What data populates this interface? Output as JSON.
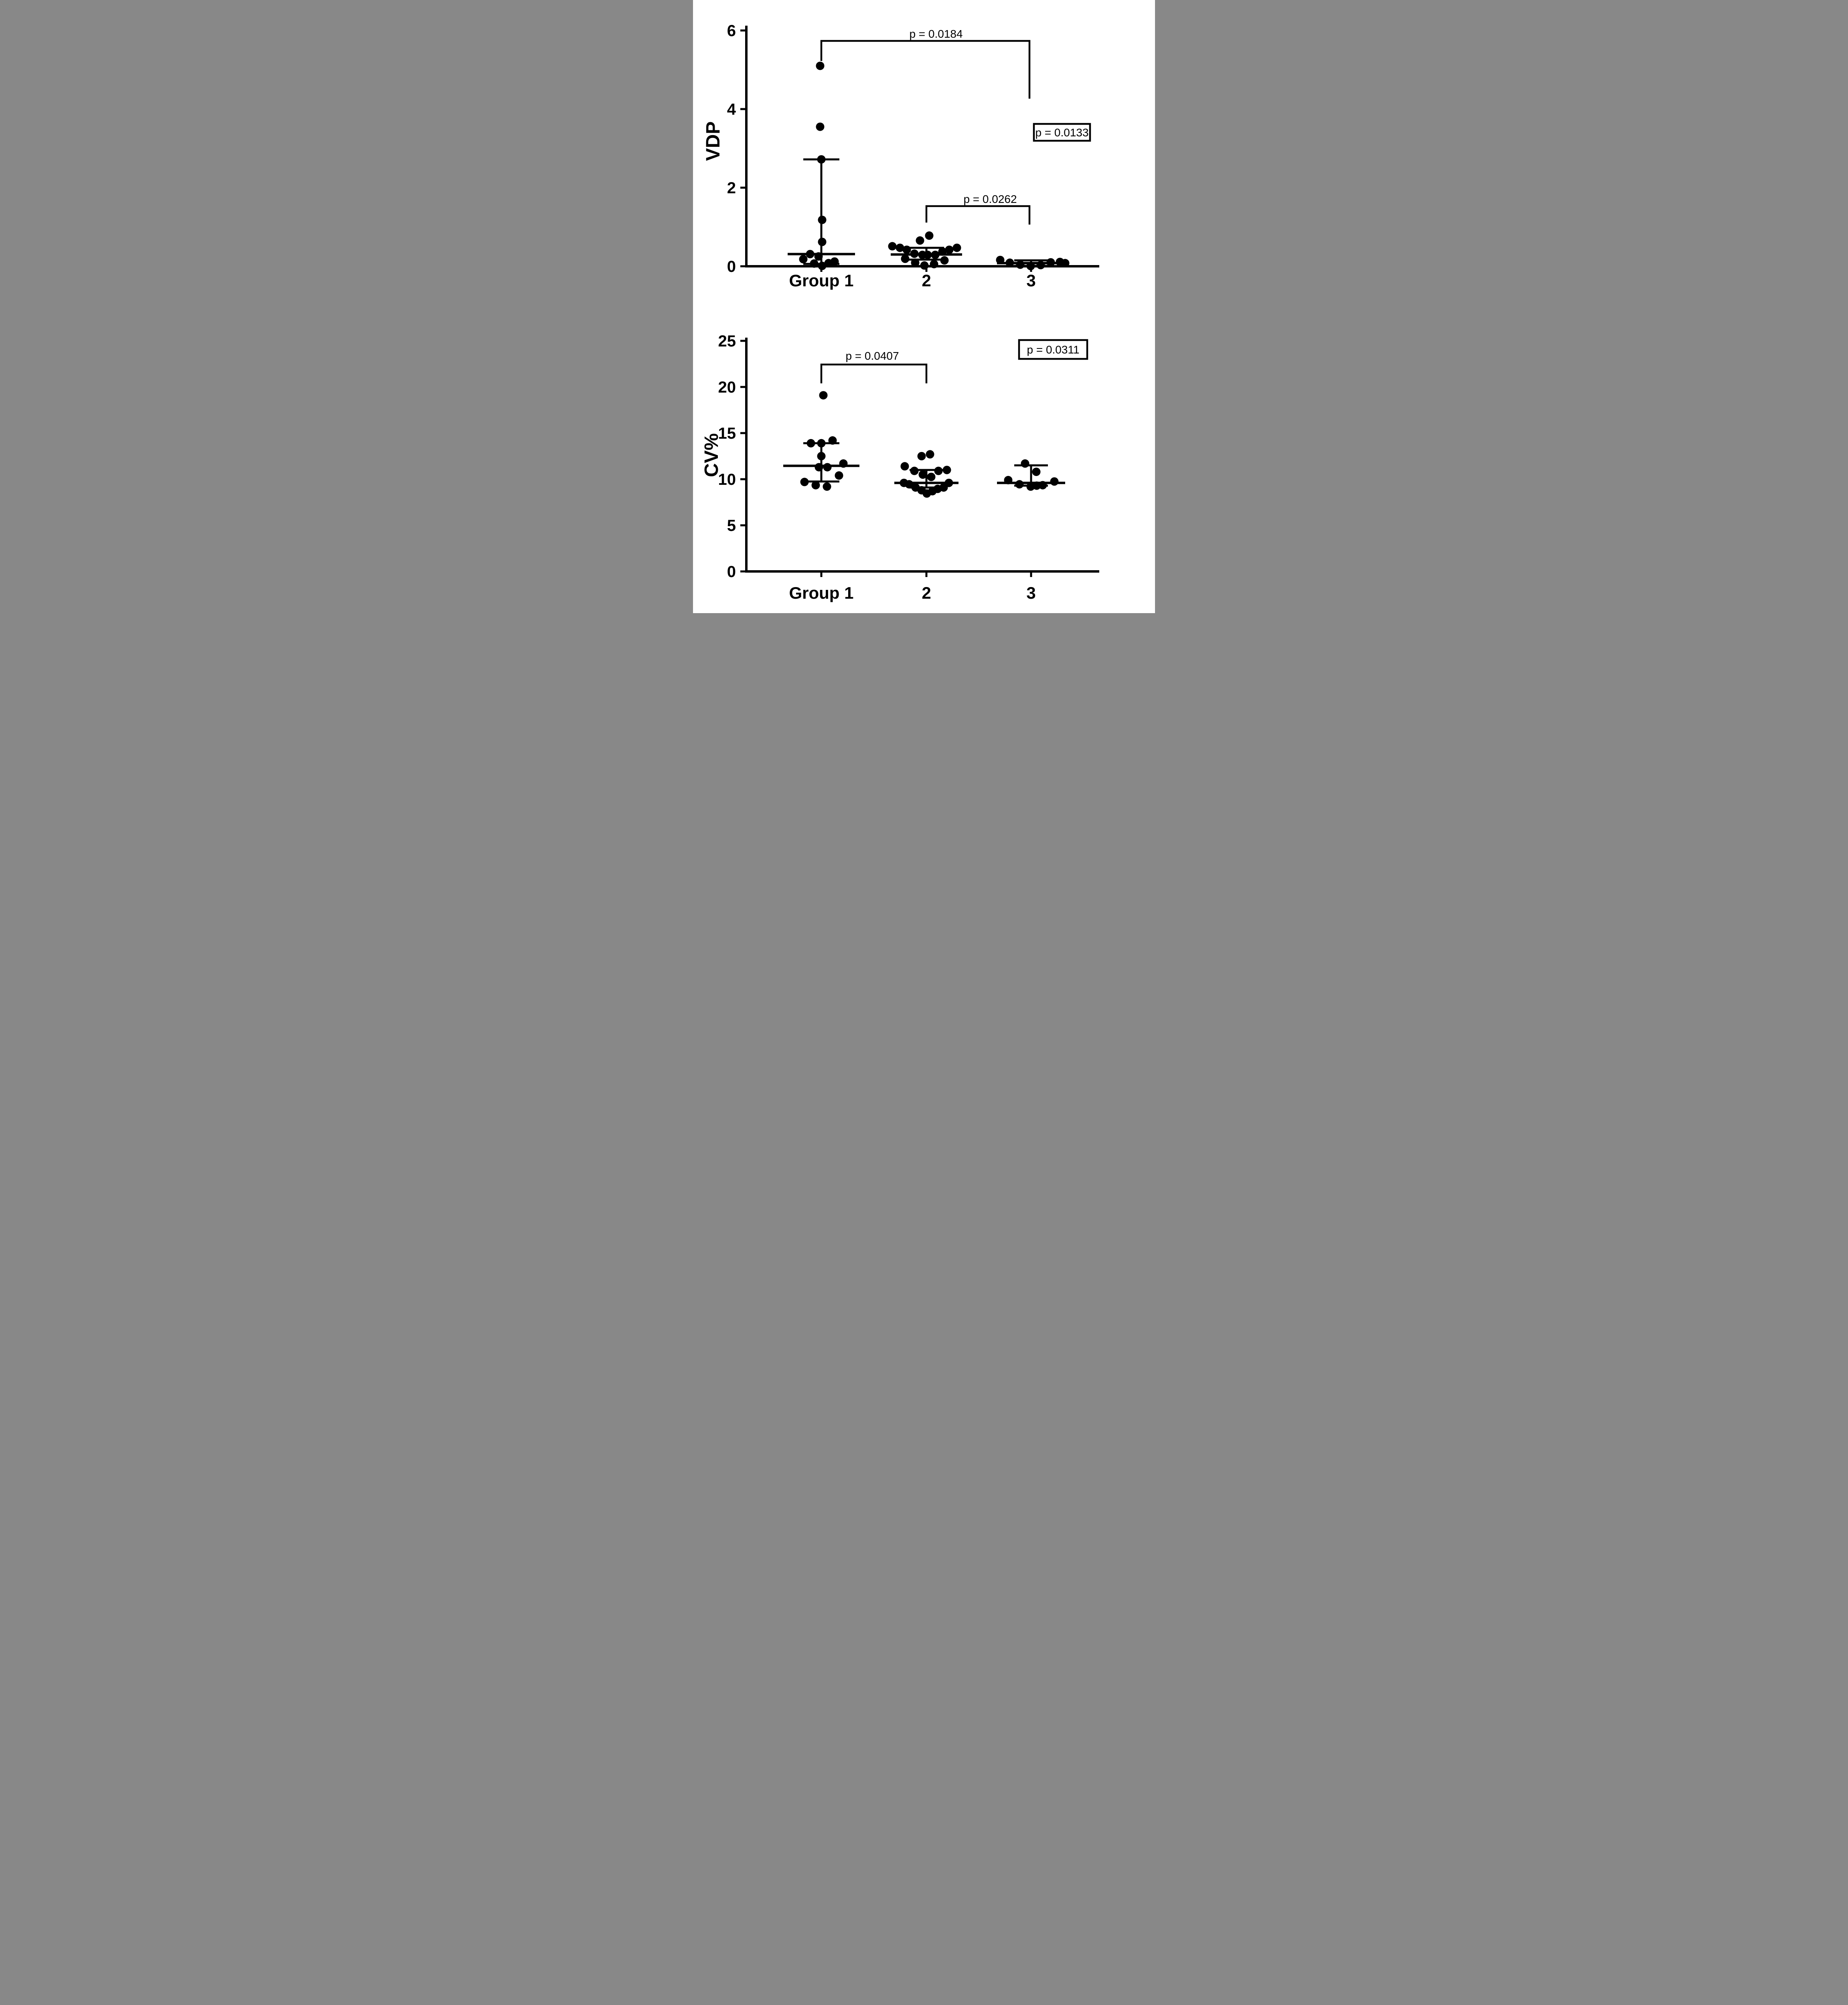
{
  "figure": {
    "background_color": "#ffffff",
    "ink_color": "#000000"
  },
  "chart_data": [
    {
      "type": "scatter",
      "panel": "top",
      "ylabel": "VDP",
      "ylim": [
        0,
        6
      ],
      "yticks": [
        0,
        2,
        4,
        6
      ],
      "grid": "off",
      "xlabels": [
        "Group  1",
        "2",
        "3"
      ],
      "groups": [
        {
          "label": "Group  1",
          "median": 0.31,
          "whisker_upper": 2.72,
          "whisker_lower": 0.06,
          "mw": 84,
          "cw": 45,
          "points": [
            {
              "v": 5.1,
              "dx": -3
            },
            {
              "v": 3.55,
              "dx": -3
            },
            {
              "v": 2.72,
              "dx": 0
            },
            {
              "v": 1.18,
              "dx": 2
            },
            {
              "v": 0.62,
              "dx": 2
            },
            {
              "v": 0.18,
              "dx": -45
            },
            {
              "v": 0.31,
              "dx": -28
            },
            {
              "v": 0.25,
              "dx": -7
            },
            {
              "v": 0.07,
              "dx": -18
            },
            {
              "v": 0.01,
              "dx": 2
            },
            {
              "v": 0.08,
              "dx": 18
            },
            {
              "v": 0.12,
              "dx": 33
            }
          ]
        },
        {
          "label": "2",
          "median": 0.3,
          "whisker_upper": 0.47,
          "whisker_lower": 0.17,
          "mw": 89,
          "cw": 44,
          "points": [
            {
              "v": 0.78,
              "dx": 7
            },
            {
              "v": 0.655,
              "dx": -16
            },
            {
              "v": 0.51,
              "dx": -85
            },
            {
              "v": 0.47,
              "dx": -66
            },
            {
              "v": 0.42,
              "dx": -49
            },
            {
              "v": 0.47,
              "dx": 76
            },
            {
              "v": 0.42,
              "dx": 57
            },
            {
              "v": 0.375,
              "dx": 40
            },
            {
              "v": 0.32,
              "dx": -30
            },
            {
              "v": 0.29,
              "dx": -10
            },
            {
              "v": 0.29,
              "dx": 3
            },
            {
              "v": 0.29,
              "dx": 22
            },
            {
              "v": 0.19,
              "dx": -53
            },
            {
              "v": 0.15,
              "dx": 45
            },
            {
              "v": 0.09,
              "dx": -28
            },
            {
              "v": 0.02,
              "dx": -5
            },
            {
              "v": 0.055,
              "dx": 19
            }
          ]
        },
        {
          "label": "3",
          "median": 0.08,
          "whisker_upper": 0.15,
          "whisker_lower": 0.01,
          "mw": 85,
          "cw": 42,
          "points": [
            {
              "v": 0.16,
              "dx": -77
            },
            {
              "v": 0.09,
              "dx": -53
            },
            {
              "v": 0.04,
              "dx": -27
            },
            {
              "v": 0.005,
              "dx": -1
            },
            {
              "v": 0.03,
              "dx": 24
            },
            {
              "v": 0.1,
              "dx": 49
            },
            {
              "v": 0.11,
              "dx": 72
            },
            {
              "v": 0.08,
              "dx": 85
            }
          ]
        }
      ],
      "brackets": [
        {
          "text": "p = 0.0184",
          "x1": 320,
          "x2": 839,
          "y": 102,
          "d1": 50,
          "d2": 144,
          "tx": 606,
          "ty": 94
        },
        {
          "text": "p = 0.0262",
          "x1": 582,
          "x2": 839,
          "y": 514,
          "d1": 41,
          "d2": 46,
          "tx": 741,
          "ty": 506
        }
      ],
      "pbox": {
        "text": "p = 0.0133",
        "x": 850,
        "y": 309,
        "w": 140,
        "h": 42
      }
    },
    {
      "type": "scatter",
      "panel": "bottom",
      "ylabel": "CV%",
      "ylim": [
        0,
        25
      ],
      "yticks": [
        0,
        5,
        10,
        15,
        20,
        25
      ],
      "grid": "off",
      "xlabels": [
        "Group 1",
        "2",
        "3"
      ],
      "groups": [
        {
          "label": "Group 1",
          "median": 11.45,
          "whisker_upper": 13.9,
          "whisker_lower": 9.75,
          "mw": 95,
          "cw": 45,
          "points": [
            {
              "v": 19.1,
              "dx": 5
            },
            {
              "v": 14.2,
              "dx": 28
            },
            {
              "v": 13.9,
              "dx": -26
            },
            {
              "v": 13.9,
              "dx": 0
            },
            {
              "v": 12.5,
              "dx": 0
            },
            {
              "v": 11.7,
              "dx": 55
            },
            {
              "v": 11.3,
              "dx": -6
            },
            {
              "v": 11.3,
              "dx": 15
            },
            {
              "v": 10.4,
              "dx": 44
            },
            {
              "v": 9.7,
              "dx": -42
            },
            {
              "v": 9.35,
              "dx": -14
            },
            {
              "v": 9.2,
              "dx": 14
            }
          ]
        },
        {
          "label": "2",
          "median": 9.6,
          "whisker_upper": 11.0,
          "whisker_lower": 9.1,
          "mw": 80,
          "cw": 42,
          "points": [
            {
              "v": 12.5,
              "dx": -12
            },
            {
              "v": 12.7,
              "dx": 9
            },
            {
              "v": 11.4,
              "dx": -54
            },
            {
              "v": 10.9,
              "dx": -30
            },
            {
              "v": 10.5,
              "dx": -9
            },
            {
              "v": 10.25,
              "dx": 12
            },
            {
              "v": 10.9,
              "dx": 30
            },
            {
              "v": 11.0,
              "dx": 51
            },
            {
              "v": 9.6,
              "dx": -56
            },
            {
              "v": 9.45,
              "dx": -43
            },
            {
              "v": 9.1,
              "dx": -27
            },
            {
              "v": 8.8,
              "dx": -12
            },
            {
              "v": 8.45,
              "dx": 1
            },
            {
              "v": 8.7,
              "dx": 15
            },
            {
              "v": 8.95,
              "dx": 28
            },
            {
              "v": 9.1,
              "dx": 43
            },
            {
              "v": 9.6,
              "dx": 56
            }
          ]
        },
        {
          "label": "3",
          "median": 9.6,
          "whisker_upper": 11.5,
          "whisker_lower": 9.3,
          "mw": 85,
          "cw": 42,
          "points": [
            {
              "v": 11.7,
              "dx": -15
            },
            {
              "v": 10.8,
              "dx": 13
            },
            {
              "v": 9.9,
              "dx": -57
            },
            {
              "v": 9.45,
              "dx": -29
            },
            {
              "v": 9.2,
              "dx": -1
            },
            {
              "v": 9.35,
              "dx": 29
            },
            {
              "v": 9.75,
              "dx": 58
            },
            {
              "v": 9.3,
              "dx": 14
            }
          ]
        }
      ],
      "brackets": [
        {
          "text": "p = 0.0407",
          "x1": 320,
          "x2": 582,
          "y": 909,
          "d1": 47,
          "d2": 47,
          "tx": 447,
          "ty": 897
        }
      ],
      "pbox": {
        "text": "p = 0.0311",
        "x": 813,
        "y": 848,
        "w": 170,
        "h": 47
      }
    }
  ]
}
